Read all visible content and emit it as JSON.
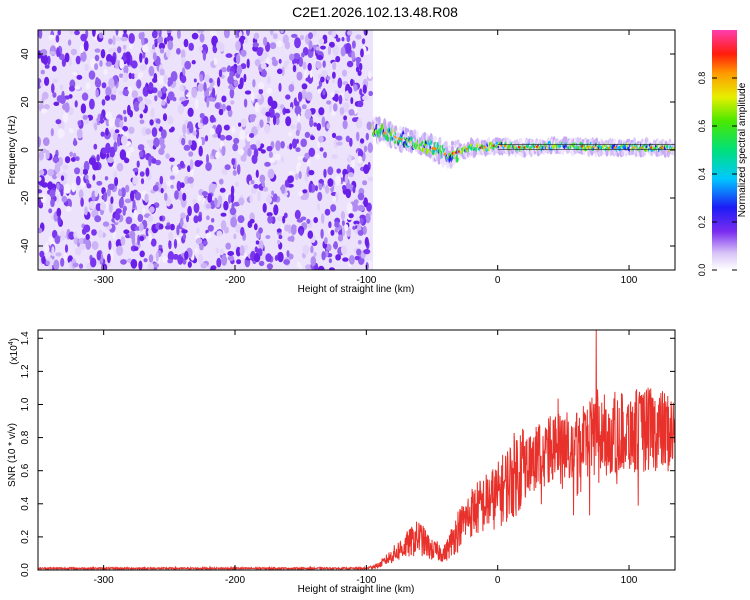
{
  "title": "C2E1.2026.102.13.48.R08",
  "colorbar": {
    "label": "Normalized spectral amplitude",
    "ticks": [
      "0.0",
      "0.2",
      "0.4",
      "0.6",
      "0.8"
    ]
  },
  "chart_data": [
    {
      "type": "heatmap",
      "name": "spectrogram",
      "xlabel": "Height of straight line (km)",
      "ylabel": "Frequency (Hz)",
      "xlim": [
        -350,
        135
      ],
      "ylim": [
        -50,
        50
      ],
      "xticks": [
        -300,
        -200,
        -100,
        0,
        100
      ],
      "yticks": [
        -40,
        -20,
        0,
        20,
        40
      ],
      "xtick_labels": [
        "-300",
        "-200",
        "-100",
        "0",
        "100"
      ],
      "ytick_labels": [
        "-40",
        "-20",
        "0",
        "20",
        "40"
      ],
      "noise_region": [
        -350,
        -95
      ],
      "ridge_x": [
        -95,
        -85,
        -75,
        -65,
        -55,
        -45,
        -38,
        -30,
        -20,
        -10,
        0,
        20,
        50,
        80,
        110,
        135
      ],
      "ridge_freq": [
        9,
        7,
        5,
        3,
        2,
        0,
        -2,
        -1,
        1,
        1,
        2,
        1,
        2,
        1,
        1,
        1
      ],
      "color_range": [
        0,
        1
      ]
    },
    {
      "type": "line",
      "name": "snr",
      "xlabel": "Height of straight line (km)",
      "ylabel": "SNR (10 * v/v)",
      "multiplier": "(x10",
      "multiplier_exp": "4",
      "xlim": [
        -350,
        135
      ],
      "ylim": [
        0,
        1.45
      ],
      "xticks": [
        -300,
        -200,
        -100,
        0,
        100
      ],
      "yticks": [
        0.0,
        0.2,
        0.4,
        0.6,
        0.8,
        1.0,
        1.2,
        1.4
      ],
      "xtick_labels": [
        "-300",
        "-200",
        "-100",
        "0",
        "100"
      ],
      "ytick_labels": [
        "0.0",
        "0.2",
        "0.4",
        "0.6",
        "0.8",
        "1.0",
        "1.2",
        "1.4"
      ],
      "color": "#e8312a",
      "envelope_x": [
        -350,
        -100,
        -90,
        -75,
        -60,
        -50,
        -40,
        -30,
        -20,
        -10,
        0,
        10,
        20,
        40,
        60,
        80,
        100,
        120,
        135
      ],
      "envelope_y": [
        0.01,
        0.01,
        0.03,
        0.12,
        0.2,
        0.12,
        0.1,
        0.25,
        0.35,
        0.4,
        0.45,
        0.55,
        0.65,
        0.72,
        0.78,
        0.82,
        0.84,
        0.85,
        0.82
      ],
      "peak": {
        "x": 75,
        "y": 1.45
      }
    }
  ]
}
